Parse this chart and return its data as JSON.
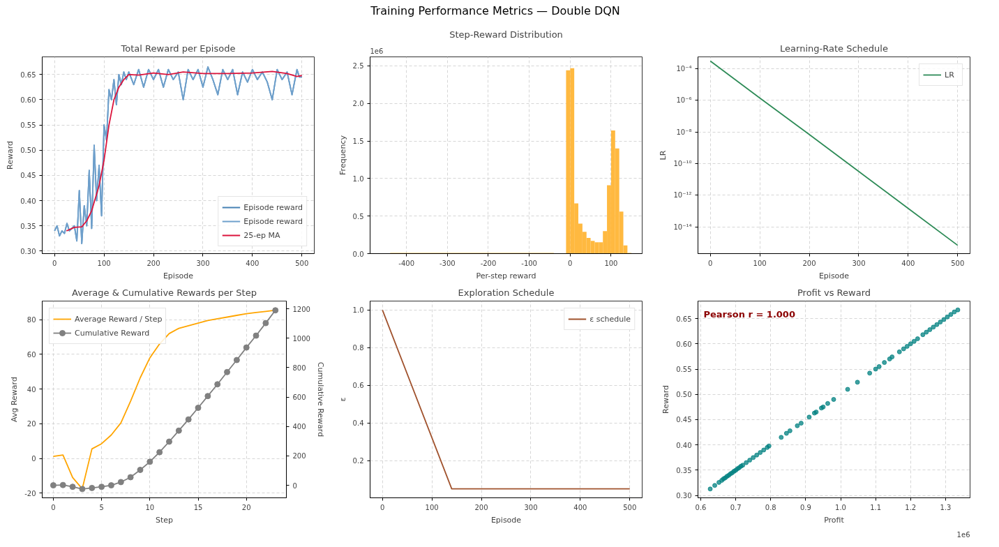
{
  "chart_data": [
    {
      "type": "other",
      "title": "Training Performance Metrics  —  Double DQN"
    },
    {
      "type": "line",
      "title": "Total Reward per Episode",
      "xlabel": "Episode",
      "ylabel": "Reward",
      "xlim": [
        -25,
        525
      ],
      "ylim": [
        0.295,
        0.685
      ],
      "xticks": [
        0,
        100,
        200,
        300,
        400,
        500
      ],
      "yticks": [
        {
          "value": 0.3,
          "label": "0.30"
        },
        0.35,
        {
          "value": 0.4,
          "label": "0.40"
        },
        0.45,
        {
          "value": 0.5,
          "label": "0.50"
        },
        0.55,
        {
          "value": 0.6,
          "label": "0.60"
        },
        0.65
      ],
      "grid": true,
      "legend": "bottom right",
      "line_style": "solid",
      "series": [
        {
          "name": "Episode reward",
          "color": "#4682b4",
          "x": [
            0,
            5,
            10,
            15,
            20,
            25,
            30,
            35,
            40,
            45,
            50,
            55,
            60,
            65,
            70,
            75,
            80,
            85,
            90,
            95,
            100,
            105,
            110,
            115,
            120,
            125,
            130,
            135,
            140,
            145,
            150,
            160,
            170,
            180,
            190,
            200,
            210,
            220,
            230,
            240,
            250,
            260,
            270,
            280,
            290,
            300,
            310,
            320,
            330,
            340,
            350,
            360,
            370,
            380,
            390,
            400,
            410,
            420,
            430,
            440,
            450,
            460,
            470,
            480,
            490,
            495,
            500
          ],
          "values": [
            0.34,
            0.35,
            0.33,
            0.34,
            0.335,
            0.355,
            0.34,
            0.345,
            0.35,
            0.32,
            0.42,
            0.315,
            0.39,
            0.35,
            0.46,
            0.345,
            0.51,
            0.4,
            0.47,
            0.37,
            0.55,
            0.52,
            0.62,
            0.6,
            0.64,
            0.59,
            0.65,
            0.63,
            0.655,
            0.64,
            0.655,
            0.63,
            0.66,
            0.625,
            0.66,
            0.64,
            0.66,
            0.625,
            0.66,
            0.64,
            0.655,
            0.6,
            0.66,
            0.64,
            0.66,
            0.625,
            0.665,
            0.64,
            0.61,
            0.66,
            0.64,
            0.66,
            0.61,
            0.655,
            0.635,
            0.66,
            0.64,
            0.655,
            0.635,
            0.6,
            0.66,
            0.64,
            0.655,
            0.61,
            0.66,
            0.645,
            0.645
          ]
        },
        {
          "name": "Episode reward",
          "color": "#6fa0cc",
          "x": [
            0,
            5,
            10,
            15,
            20,
            25,
            30,
            35,
            40,
            45,
            50,
            55,
            60,
            65,
            70,
            75,
            80,
            85,
            90,
            95,
            100,
            105,
            110,
            115,
            120,
            125,
            130,
            135,
            140,
            145,
            150,
            160,
            170,
            180,
            190,
            200,
            210,
            220,
            230,
            240,
            250,
            260,
            270,
            280,
            290,
            300,
            310,
            320,
            330,
            340,
            350,
            360,
            370,
            380,
            390,
            400,
            410,
            420,
            430,
            440,
            450,
            460,
            470,
            480,
            490,
            495,
            500
          ],
          "values": [
            0.34,
            0.35,
            0.33,
            0.34,
            0.335,
            0.355,
            0.34,
            0.345,
            0.35,
            0.32,
            0.42,
            0.315,
            0.39,
            0.35,
            0.46,
            0.345,
            0.51,
            0.4,
            0.47,
            0.37,
            0.55,
            0.52,
            0.62,
            0.6,
            0.64,
            0.59,
            0.65,
            0.63,
            0.655,
            0.64,
            0.655,
            0.63,
            0.66,
            0.625,
            0.66,
            0.64,
            0.66,
            0.625,
            0.66,
            0.64,
            0.655,
            0.6,
            0.66,
            0.64,
            0.66,
            0.625,
            0.665,
            0.64,
            0.61,
            0.66,
            0.64,
            0.66,
            0.61,
            0.655,
            0.635,
            0.66,
            0.64,
            0.655,
            0.635,
            0.6,
            0.66,
            0.64,
            0.655,
            0.61,
            0.66,
            0.645,
            0.645
          ]
        },
        {
          "name": "25-ep MA",
          "color": "#dc143c",
          "x": [
            24,
            40,
            55,
            65,
            75,
            90,
            100,
            110,
            120,
            130,
            140,
            150,
            170,
            200,
            230,
            260,
            300,
            350,
            400,
            440,
            470,
            490,
            500
          ],
          "values": [
            0.34,
            0.347,
            0.348,
            0.36,
            0.38,
            0.43,
            0.48,
            0.55,
            0.6,
            0.625,
            0.64,
            0.65,
            0.649,
            0.653,
            0.65,
            0.655,
            0.652,
            0.652,
            0.653,
            0.656,
            0.652,
            0.646,
            0.648
          ]
        }
      ]
    },
    {
      "type": "histogram",
      "title": "Step-Reward Distribution",
      "xlabel": "Per-step reward",
      "ylabel": "Frequency",
      "annotations": [
        "1e6"
      ],
      "color": "#ffb940",
      "xlim": [
        -489,
        176
      ],
      "ylim": [
        0,
        2.62
      ],
      "xticks": [
        -400,
        -300,
        -200,
        -100,
        0,
        100
      ],
      "yticks": [
        {
          "value": 0,
          "label": "0.0"
        },
        0.5,
        {
          "value": 1,
          "label": "1.0"
        },
        1.5,
        {
          "value": 2,
          "label": "2.0"
        },
        2.5
      ],
      "grid": true,
      "bins": [
        -440,
        -40,
        -10,
        0,
        10,
        20,
        30,
        40,
        50,
        60,
        70,
        80,
        90,
        100,
        110,
        120,
        130,
        140,
        150
      ],
      "values": [
        0.01,
        0,
        2.44,
        2.47,
        0.67,
        0.4,
        0.29,
        0.21,
        0.17,
        0.15,
        0.15,
        0.3,
        0.91,
        1.64,
        1.4,
        0.56,
        0.11,
        0.01
      ]
    },
    {
      "type": "line",
      "title": "Learning-Rate Schedule",
      "xlabel": "Episode",
      "ylabel": "LR",
      "log": "y",
      "xlim": [
        -25,
        525
      ],
      "ylim": [
        2.1e-16,
        0.00055
      ],
      "xticks": [
        0,
        100,
        200,
        300,
        400,
        500
      ],
      "yticks": [
        {
          "value": 0.0001,
          "label": "10⁻⁴"
        },
        {
          "value": 1e-06,
          "label": "10⁻⁶"
        },
        {
          "value": 1e-08,
          "label": "10⁻⁸"
        },
        {
          "value": 1e-10,
          "label": "10⁻¹⁰"
        },
        {
          "value": 1e-12,
          "label": "10⁻¹²"
        },
        {
          "value": 1e-14,
          "label": "10⁻¹⁴"
        }
      ],
      "grid": true,
      "legend": "top right",
      "line_style": "solid",
      "series": [
        {
          "name": "LR",
          "color": "#2e8b57",
          "x": [
            0,
            100,
            200,
            300,
            400,
            500
          ],
          "values": [
            0.0003,
            1.4e-06,
            6.9e-09,
            3.2e-11,
            1.5e-13,
            7e-16
          ]
        }
      ]
    },
    {
      "type": "line",
      "title": "Average & Cumulative Rewards per Step",
      "xlabel": "Step",
      "ylabel": "Avg Reward",
      "y2label": "Cumulative Reward",
      "xlim": [
        -1.15,
        24.14
      ],
      "ylim": [
        -22.7,
        90.75
      ],
      "y2lim": [
        -85,
        1253
      ],
      "xticks": [
        0,
        5,
        10,
        15,
        20
      ],
      "yticks": [
        -20,
        0,
        20,
        40,
        60,
        80
      ],
      "y2ticks": [
        0,
        200,
        400,
        600,
        800,
        1000,
        1200
      ],
      "grid": true,
      "legend": "top left",
      "line_style": "solid",
      "x": [
        0,
        1,
        2,
        3,
        4,
        5,
        6,
        7,
        8,
        9,
        10,
        11,
        12,
        13,
        14,
        15,
        16,
        17,
        18,
        19,
        20,
        21,
        22,
        23
      ],
      "series": [
        {
          "name": "Average Reward / Step",
          "color": "#ffa500",
          "marker": "none",
          "values": [
            1.2,
            2,
            -11,
            -17.5,
            5.5,
            8.5,
            13.5,
            20.5,
            33,
            46.5,
            58,
            66,
            72,
            75,
            76.5,
            78,
            79.5,
            80.5,
            81.5,
            82.5,
            83.5,
            84.2,
            84.8,
            85.5
          ]
        },
        {
          "name": "Cumulative Reward",
          "color": "#808080",
          "marker": "circle",
          "axis": "y2",
          "values": [
            0,
            2,
            -10,
            -25,
            -18,
            -10,
            0,
            22,
            55,
            105,
            160,
            225,
            297,
            372,
            448,
            527,
            607,
            687,
            770,
            852,
            937,
            1018,
            1103,
            1190
          ]
        }
      ]
    },
    {
      "type": "line",
      "title": "Exploration Schedule",
      "xlabel": "Episode",
      "ylabel": "ε",
      "xlim": [
        -25,
        525
      ],
      "ylim": [
        0.0025,
        1.0475
      ],
      "xticks": [
        0,
        100,
        200,
        300,
        400,
        500
      ],
      "yticks": [
        0.2,
        0.4,
        0.6,
        0.8,
        {
          "value": 1,
          "label": "1.0"
        }
      ],
      "grid": true,
      "legend": "top right",
      "line_style": "solid",
      "series": [
        {
          "name": "ε schedule",
          "color": "#a0522d",
          "x": [
            0,
            140,
            500
          ],
          "values": [
            1.0,
            0.05,
            0.05
          ]
        }
      ]
    },
    {
      "type": "scatter",
      "title": "Profit vs Reward",
      "xlabel": "Profit",
      "ylabel": "Reward",
      "annotations": [
        "Pearson r = 1.000",
        "1e6"
      ],
      "xlim": [
        0.592,
        1.37
      ],
      "ylim": [
        0.2955,
        0.6845
      ],
      "xticks": [
        0.6,
        0.7,
        0.8,
        0.9,
        {
          "value": 1,
          "label": "1.0"
        },
        1.1,
        1.2,
        1.3
      ],
      "yticks": [
        {
          "value": 0.3,
          "label": "0.30"
        },
        0.35,
        {
          "value": 0.4,
          "label": "0.40"
        },
        0.45,
        {
          "value": 0.5,
          "label": "0.50"
        },
        0.55,
        {
          "value": 0.6,
          "label": "0.60"
        },
        0.65
      ],
      "grid": true,
      "marker": "circle",
      "series": [
        {
          "color": "#008080",
          "x": [
            0.627,
            0.64,
            0.652,
            0.66,
            0.665,
            0.67,
            0.675,
            0.68,
            0.685,
            0.69,
            0.695,
            0.7,
            0.705,
            0.71,
            0.715,
            0.72,
            0.73,
            0.74,
            0.75,
            0.76,
            0.77,
            0.78,
            0.79,
            0.795,
            0.83,
            0.845,
            0.855,
            0.876,
            0.887,
            0.91,
            0.925,
            0.93,
            0.945,
            0.95,
            0.963,
            0.98,
            1.02,
            1.048,
            1.083,
            1.1,
            1.11,
            1.125,
            1.14,
            1.147,
            1.168,
            1.18,
            1.19,
            1.2,
            1.21,
            1.22,
            1.235,
            1.245,
            1.255,
            1.265,
            1.275,
            1.285,
            1.295,
            1.305,
            1.315,
            1.325,
            1.335
          ],
          "values": [
            0.313,
            0.32,
            0.326,
            0.33,
            0.333,
            0.335,
            0.338,
            0.34,
            0.343,
            0.345,
            0.348,
            0.35,
            0.353,
            0.355,
            0.358,
            0.36,
            0.365,
            0.37,
            0.375,
            0.38,
            0.385,
            0.39,
            0.395,
            0.398,
            0.415,
            0.423,
            0.428,
            0.438,
            0.443,
            0.455,
            0.463,
            0.465,
            0.473,
            0.475,
            0.482,
            0.49,
            0.51,
            0.524,
            0.542,
            0.55,
            0.555,
            0.563,
            0.57,
            0.574,
            0.584,
            0.59,
            0.595,
            0.6,
            0.605,
            0.61,
            0.618,
            0.623,
            0.628,
            0.633,
            0.638,
            0.643,
            0.648,
            0.653,
            0.658,
            0.663,
            0.667
          ]
        }
      ]
    }
  ]
}
